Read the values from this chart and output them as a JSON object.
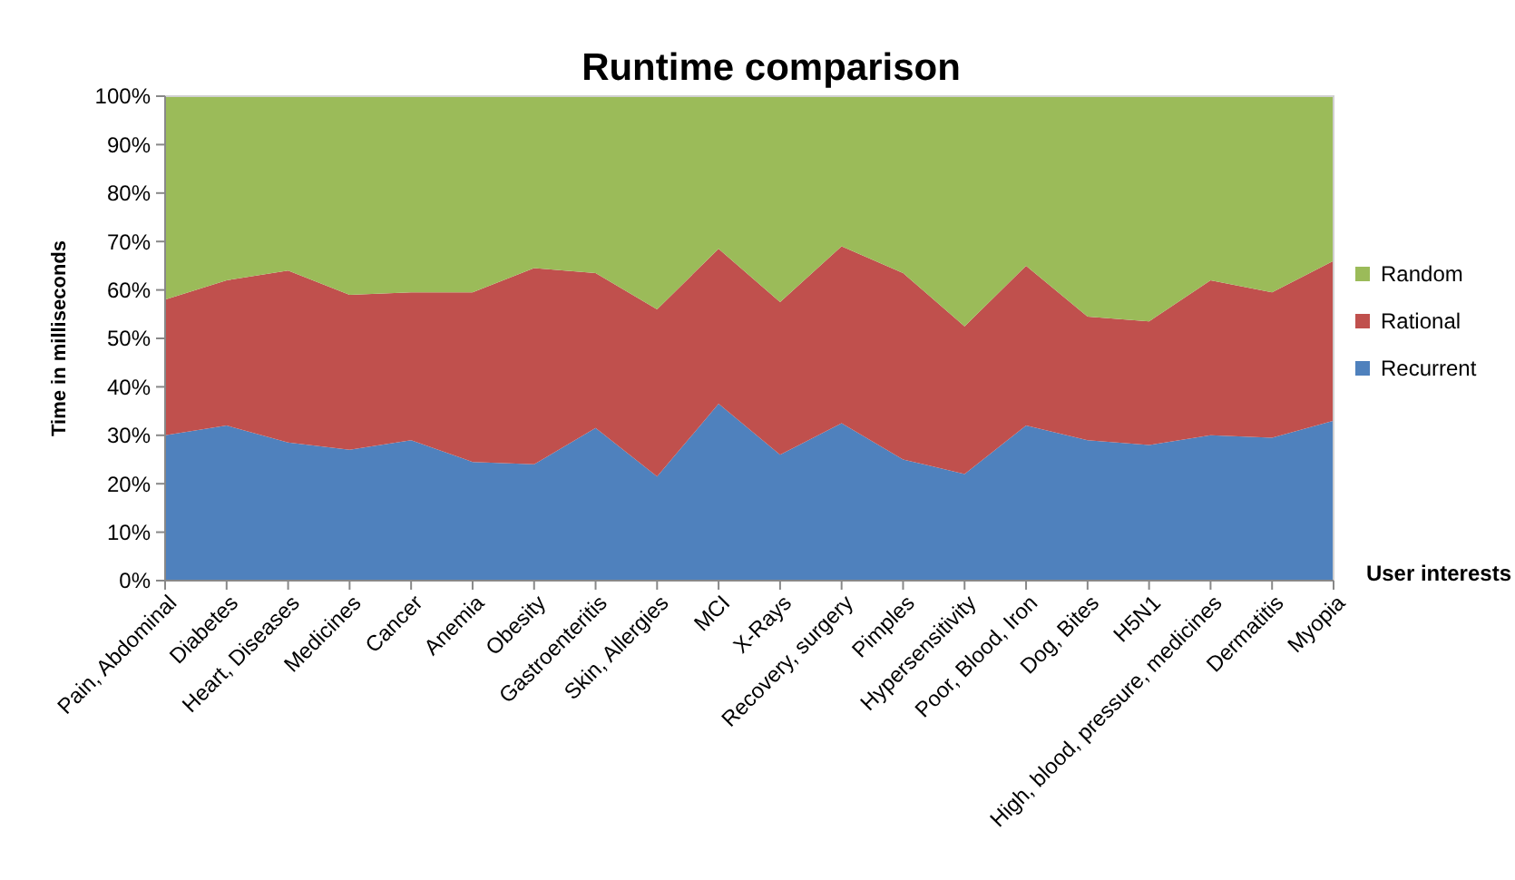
{
  "chart_data": {
    "type": "area",
    "stacked": true,
    "title": "Runtime comparison",
    "xlabel": "User interests",
    "ylabel": "Time in milliseconds",
    "categories": [
      "Pain, Abdominal",
      "Diabetes",
      "Heart, Diseases",
      "Medicines",
      "Cancer",
      "Anemia",
      "Obesity",
      "Gastroenteritis",
      "Skin, Allergies",
      "MCI",
      "X-Rays",
      "Recovery, surgery",
      "Pimples",
      "Hypersensitivity",
      "Poor, Blood, Iron",
      "Dog, Bites",
      "H5N1",
      "High, blood, pressure, medicines",
      "Dermatitis",
      "Myopia"
    ],
    "series": [
      {
        "name": "Recurrent",
        "color": "#4f81bd",
        "values": [
          30,
          32,
          28.5,
          27,
          29,
          24.5,
          24,
          31.5,
          21.5,
          36.5,
          26,
          32.5,
          25,
          22,
          32,
          29,
          28,
          30,
          29.5,
          33
        ]
      },
      {
        "name": "Rational",
        "color": "#c0504d",
        "values": [
          28,
          30,
          35.5,
          32,
          30.5,
          35,
          40.5,
          32,
          34.5,
          32,
          31.5,
          36.5,
          38.5,
          30.5,
          33,
          25.5,
          25.5,
          32,
          30,
          33
        ]
      },
      {
        "name": "Random",
        "color": "#9bbb59",
        "values": [
          42,
          38,
          36,
          41,
          40.5,
          40.5,
          35.5,
          36.5,
          44,
          31.5,
          42.5,
          31,
          36.5,
          47.5,
          35,
          45.5,
          46.5,
          38,
          40.5,
          34
        ]
      }
    ],
    "ylim": [
      0,
      100
    ],
    "yticks": [
      {
        "value": 0,
        "label": "0%"
      },
      {
        "value": 10,
        "label": "10%"
      },
      {
        "value": 20,
        "label": "20%"
      },
      {
        "value": 30,
        "label": "30%"
      },
      {
        "value": 40,
        "label": "40%"
      },
      {
        "value": 50,
        "label": "50%"
      },
      {
        "value": 60,
        "label": "60%"
      },
      {
        "value": 70,
        "label": "70%"
      },
      {
        "value": 80,
        "label": "80%"
      },
      {
        "value": 90,
        "label": "90%"
      },
      {
        "value": 100,
        "label": "100%"
      }
    ],
    "grid": false,
    "legend": "right"
  }
}
